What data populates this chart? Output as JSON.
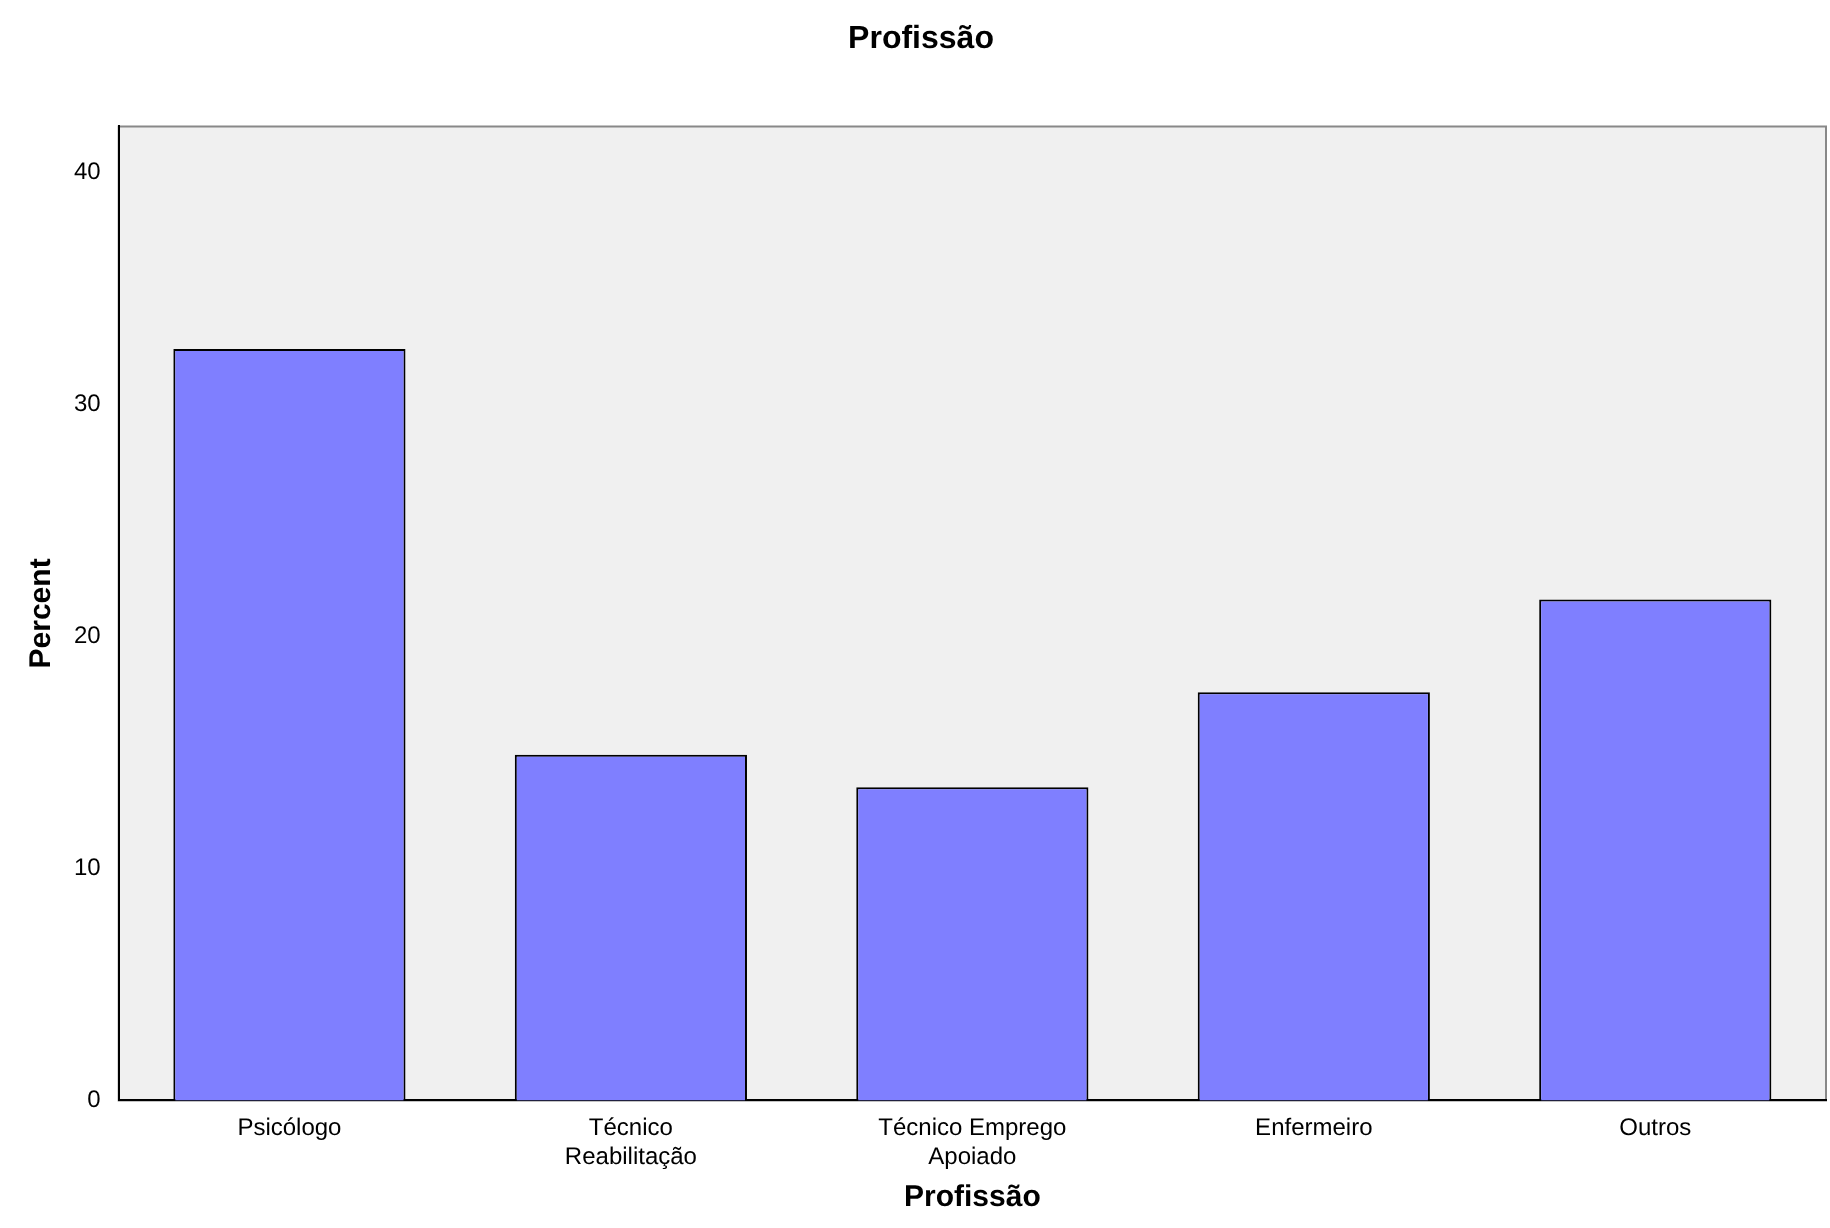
{
  "chart_data": {
    "type": "bar",
    "title": "Profissão",
    "xlabel": "Profissão",
    "ylabel": "Percent",
    "categories": [
      "Psicólogo",
      "Técnico Reabilitação",
      "Técnico Emprego Apoiado",
      "Enfermeiro",
      "Outros"
    ],
    "values": [
      32.4,
      14.9,
      13.5,
      17.6,
      21.6
    ],
    "color": "#7f7fff",
    "ylim": [
      0,
      42
    ],
    "yticks": [
      0,
      10,
      20,
      30,
      40
    ],
    "grid": false,
    "legend": false
  }
}
